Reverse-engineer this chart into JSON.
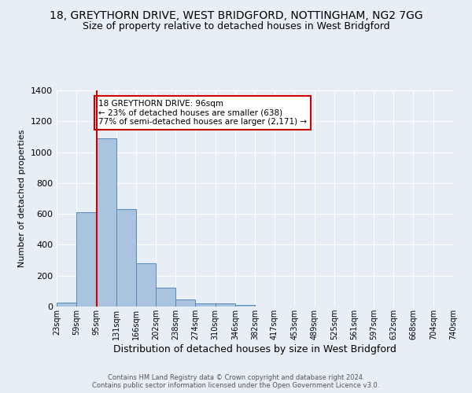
{
  "title": "18, GREYTHORN DRIVE, WEST BRIDGFORD, NOTTINGHAM, NG2 7GG",
  "subtitle": "Size of property relative to detached houses in West Bridgford",
  "xlabel": "Distribution of detached houses by size in West Bridgford",
  "ylabel": "Number of detached properties",
  "bin_edges": [
    23,
    59,
    95,
    131,
    166,
    202,
    238,
    274,
    310,
    346,
    382,
    417,
    453,
    489,
    525,
    561,
    597,
    632,
    668,
    704,
    740
  ],
  "bin_labels": [
    "23sqm",
    "59sqm",
    "95sqm",
    "131sqm",
    "166sqm",
    "202sqm",
    "238sqm",
    "274sqm",
    "310sqm",
    "346sqm",
    "382sqm",
    "417sqm",
    "453sqm",
    "489sqm",
    "525sqm",
    "561sqm",
    "597sqm",
    "632sqm",
    "668sqm",
    "704sqm",
    "740sqm"
  ],
  "bar_heights": [
    25,
    610,
    1090,
    630,
    280,
    120,
    45,
    22,
    22,
    12,
    0,
    0,
    0,
    0,
    0,
    0,
    0,
    0,
    0,
    0
  ],
  "bar_color": "#aac4e0",
  "bar_edge_color": "#5588bb",
  "ylim": [
    0,
    1400
  ],
  "yticks": [
    0,
    200,
    400,
    600,
    800,
    1000,
    1200,
    1400
  ],
  "vline_x": 96,
  "vline_color": "#cc0000",
  "annotation_text": "18 GREYTHORN DRIVE: 96sqm\n← 23% of detached houses are smaller (638)\n77% of semi-detached houses are larger (2,171) →",
  "annotation_box_color": "#ffffff",
  "annotation_box_edge": "#cc0000",
  "footer_text": "Contains HM Land Registry data © Crown copyright and database right 2024.\nContains public sector information licensed under the Open Government Licence v3.0.",
  "background_color": "#e8eef5",
  "grid_color": "#ffffff",
  "title_fontsize": 10,
  "subtitle_fontsize": 9,
  "xlabel_fontsize": 9,
  "ylabel_fontsize": 8
}
